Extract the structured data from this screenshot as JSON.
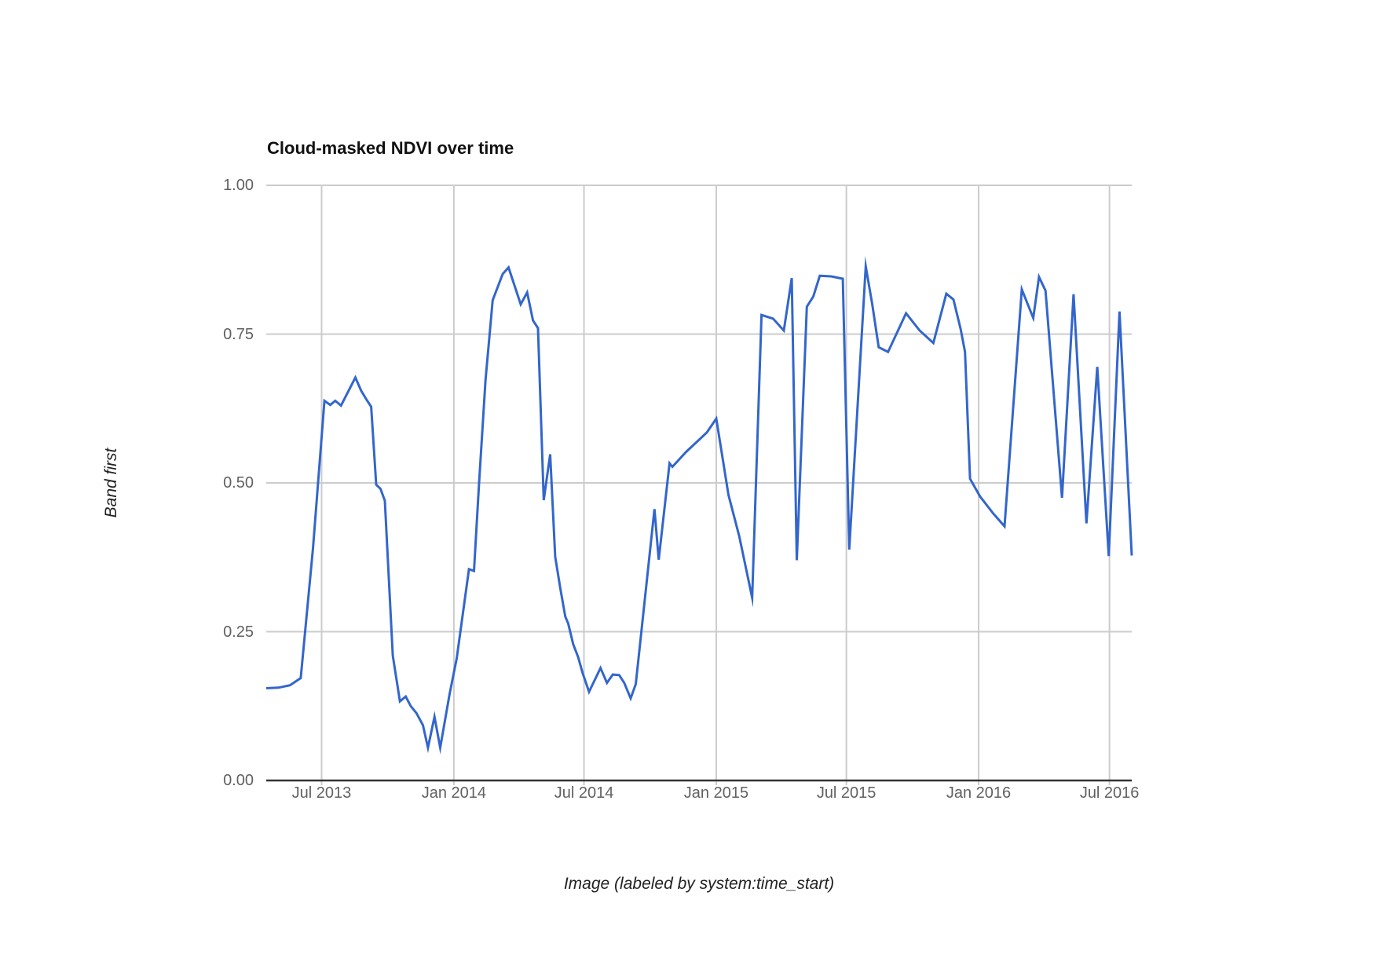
{
  "chart": {
    "title": "Cloud-masked NDVI over time",
    "y_axis": {
      "title": "Band first",
      "ticks": [
        {
          "label": "1.00",
          "value": 1.0
        },
        {
          "label": "0.75",
          "value": 0.75
        },
        {
          "label": "0.50",
          "value": 0.5
        },
        {
          "label": "0.25",
          "value": 0.25
        },
        {
          "label": "0.00",
          "value": 0.0
        }
      ]
    },
    "x_axis": {
      "title": "Image (labeled by system:time_start)",
      "ticks": [
        {
          "label": "Jul 2013",
          "date": "2013-07-01"
        },
        {
          "label": "Jan 2014",
          "date": "2014-01-01"
        },
        {
          "label": "Jul 2014",
          "date": "2014-07-01"
        },
        {
          "label": "Jan 2015",
          "date": "2015-01-01"
        },
        {
          "label": "Jul 2015",
          "date": "2015-07-01"
        },
        {
          "label": "Jan 2016",
          "date": "2016-01-01"
        },
        {
          "label": "Jul 2016",
          "date": "2016-07-01"
        }
      ]
    },
    "colors": {
      "line": "#3366cc",
      "grid": "#cccccc",
      "baseline": "#333333",
      "tick_text": "#616161",
      "axis_title_text": "#222222",
      "title_text": "#111111",
      "background": "#ffffff"
    }
  },
  "chart_data": {
    "type": "line",
    "title": "Cloud-masked NDVI over time",
    "xlabel": "Image (labeled by system:time_start)",
    "ylabel": "Band first",
    "ylim": [
      0,
      1
    ],
    "x_range": [
      "2013-04-15",
      "2016-08-01"
    ],
    "grid": true,
    "legend": "none",
    "points": [
      [
        "2013-04-15",
        0.155
      ],
      [
        "2013-05-02",
        0.156
      ],
      [
        "2013-05-18",
        0.16
      ],
      [
        "2013-06-02",
        0.172
      ],
      [
        "2013-06-19",
        0.39
      ],
      [
        "2013-07-05",
        0.638
      ],
      [
        "2013-07-13",
        0.631
      ],
      [
        "2013-07-20",
        0.638
      ],
      [
        "2013-07-28",
        0.63
      ],
      [
        "2013-08-17",
        0.677
      ],
      [
        "2013-08-25",
        0.655
      ],
      [
        "2013-09-02",
        0.639
      ],
      [
        "2013-09-08",
        0.628
      ],
      [
        "2013-09-15",
        0.497
      ],
      [
        "2013-09-21",
        0.49
      ],
      [
        "2013-09-27",
        0.47
      ],
      [
        "2013-10-08",
        0.21
      ],
      [
        "2013-10-18",
        0.133
      ],
      [
        "2013-10-26",
        0.141
      ],
      [
        "2013-11-02",
        0.125
      ],
      [
        "2013-11-10",
        0.113
      ],
      [
        "2013-11-19",
        0.093
      ],
      [
        "2013-11-26",
        0.055
      ],
      [
        "2013-12-05",
        0.107
      ],
      [
        "2013-12-13",
        0.055
      ],
      [
        "2013-12-26",
        0.145
      ],
      [
        "2014-01-05",
        0.205
      ],
      [
        "2014-01-22",
        0.355
      ],
      [
        "2014-01-29",
        0.352
      ],
      [
        "2014-02-05",
        0.498
      ],
      [
        "2014-02-14",
        0.673
      ],
      [
        "2014-02-24",
        0.807
      ],
      [
        "2014-03-10",
        0.851
      ],
      [
        "2014-03-18",
        0.862
      ],
      [
        "2014-04-04",
        0.8
      ],
      [
        "2014-04-13",
        0.82
      ],
      [
        "2014-04-21",
        0.773
      ],
      [
        "2014-04-28",
        0.76
      ],
      [
        "2014-05-06",
        0.471
      ],
      [
        "2014-05-15",
        0.548
      ],
      [
        "2014-05-22",
        0.376
      ],
      [
        "2014-05-29",
        0.323
      ],
      [
        "2014-06-05",
        0.275
      ],
      [
        "2014-06-09",
        0.264
      ],
      [
        "2014-06-16",
        0.229
      ],
      [
        "2014-06-23",
        0.207
      ],
      [
        "2014-06-29",
        0.181
      ],
      [
        "2014-07-08",
        0.149
      ],
      [
        "2014-07-24",
        0.189
      ],
      [
        "2014-08-02",
        0.164
      ],
      [
        "2014-08-10",
        0.178
      ],
      [
        "2014-08-19",
        0.177
      ],
      [
        "2014-08-26",
        0.164
      ],
      [
        "2014-09-04",
        0.138
      ],
      [
        "2014-09-11",
        0.162
      ],
      [
        "2014-10-07",
        0.456
      ],
      [
        "2014-10-13",
        0.371
      ],
      [
        "2014-10-28",
        0.533
      ],
      [
        "2014-11-01",
        0.527
      ],
      [
        "2014-11-04",
        0.531
      ],
      [
        "2014-11-20",
        0.552
      ],
      [
        "2014-12-06",
        0.57
      ],
      [
        "2014-12-19",
        0.585
      ],
      [
        "2015-01-01",
        0.608
      ],
      [
        "2015-01-18",
        0.48
      ],
      [
        "2015-02-02",
        0.41
      ],
      [
        "2015-02-20",
        0.307
      ],
      [
        "2015-03-05",
        0.782
      ],
      [
        "2015-03-21",
        0.776
      ],
      [
        "2015-04-05",
        0.756
      ],
      [
        "2015-04-16",
        0.844
      ],
      [
        "2015-04-23",
        0.37
      ],
      [
        "2015-05-07",
        0.796
      ],
      [
        "2015-05-16",
        0.813
      ],
      [
        "2015-05-25",
        0.848
      ],
      [
        "2015-06-10",
        0.847
      ],
      [
        "2015-06-26",
        0.843
      ],
      [
        "2015-07-05",
        0.388
      ],
      [
        "2015-07-28",
        0.864
      ],
      [
        "2015-08-06",
        0.8
      ],
      [
        "2015-08-15",
        0.728
      ],
      [
        "2015-08-28",
        0.72
      ],
      [
        "2015-09-22",
        0.785
      ],
      [
        "2015-10-11",
        0.756
      ],
      [
        "2015-10-30",
        0.735
      ],
      [
        "2015-11-17",
        0.818
      ],
      [
        "2015-11-27",
        0.808
      ],
      [
        "2015-12-07",
        0.758
      ],
      [
        "2015-12-13",
        0.72
      ],
      [
        "2015-12-20",
        0.507
      ],
      [
        "2016-01-03",
        0.477
      ],
      [
        "2016-01-21",
        0.449
      ],
      [
        "2016-02-06",
        0.427
      ],
      [
        "2016-03-01",
        0.825
      ],
      [
        "2016-03-17",
        0.777
      ],
      [
        "2016-03-25",
        0.846
      ],
      [
        "2016-04-03",
        0.823
      ],
      [
        "2016-04-26",
        0.475
      ],
      [
        "2016-05-12",
        0.817
      ],
      [
        "2016-05-30",
        0.432
      ],
      [
        "2016-06-14",
        0.695
      ],
      [
        "2016-06-30",
        0.377
      ],
      [
        "2016-07-15",
        0.788
      ],
      [
        "2016-08-01",
        0.378
      ]
    ]
  }
}
